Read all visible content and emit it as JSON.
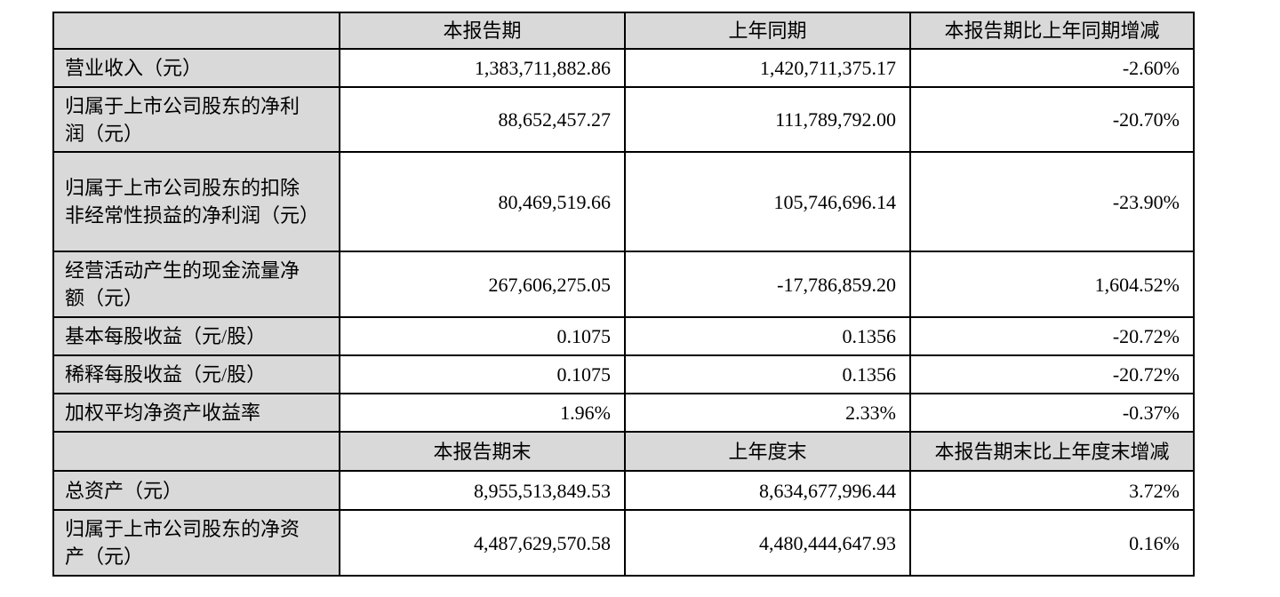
{
  "table": {
    "header_period": {
      "label": "",
      "current": "本报告期",
      "prior": "上年同期",
      "change": "本报告期比上年同期增减"
    },
    "rows_period": [
      {
        "label": "营业收入（元）",
        "current": "1,383,711,882.86",
        "prior": "1,420,711,375.17",
        "change": "-2.60%"
      },
      {
        "label": "归属于上市公司股东的净利润（元）",
        "current": "88,652,457.27",
        "prior": "111,789,792.00",
        "change": "-20.70%"
      },
      {
        "label": "归属于上市公司股东的扣除非经常性损益的净利润（元）",
        "current": "80,469,519.66",
        "prior": "105,746,696.14",
        "change": "-23.90%"
      },
      {
        "label": "经营活动产生的现金流量净额（元）",
        "current": "267,606,275.05",
        "prior": "-17,786,859.20",
        "change": "1,604.52%"
      },
      {
        "label": "基本每股收益（元/股）",
        "current": "0.1075",
        "prior": "0.1356",
        "change": "-20.72%"
      },
      {
        "label": "稀释每股收益（元/股）",
        "current": "0.1075",
        "prior": "0.1356",
        "change": "-20.72%"
      },
      {
        "label": "加权平均净资产收益率",
        "current": "1.96%",
        "prior": "2.33%",
        "change": "-0.37%"
      }
    ],
    "header_end": {
      "label": "",
      "current": "本报告期末",
      "prior": "上年度末",
      "change": "本报告期末比上年度末增减"
    },
    "rows_end": [
      {
        "label": "总资产（元）",
        "current": "8,955,513,849.53",
        "prior": "8,634,677,996.44",
        "change": "3.72%"
      },
      {
        "label": "归属于上市公司股东的净资产（元）",
        "current": "4,487,629,570.58",
        "prior": "4,480,444,647.93",
        "change": "0.16%"
      }
    ],
    "colors": {
      "header_bg": "#d9d9d9",
      "label_bg": "#d9d9d9",
      "cell_bg": "#ffffff",
      "border": "#000000",
      "text": "#000000",
      "page_bg": "#ffffff"
    }
  }
}
